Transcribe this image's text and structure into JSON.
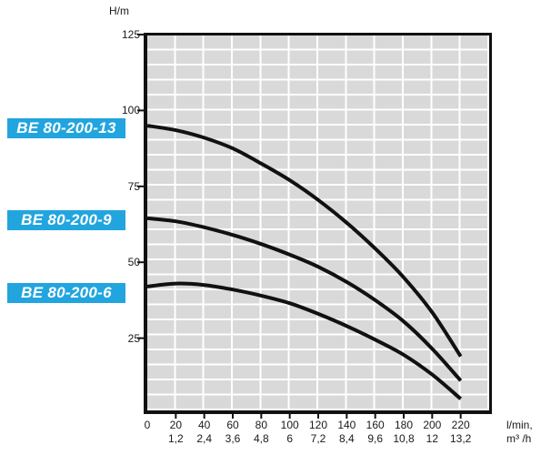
{
  "chart_data": {
    "type": "line",
    "ylabel_unit": "H/m",
    "x_unit_line1": "l/min,",
    "x_unit_line2": "m³ /h",
    "xlim": [
      0,
      240
    ],
    "ylim": [
      0,
      125
    ],
    "grid": {
      "on": true,
      "x_step_lmin": 20,
      "y_step_m": 5
    },
    "legend_position": "left-outside",
    "y_ticks": [
      25,
      50,
      75,
      100,
      125
    ],
    "x_ticks_lmin": [
      0,
      20,
      40,
      60,
      80,
      100,
      120,
      140,
      160,
      180,
      200,
      220
    ],
    "x_ticks_m3h": [
      "",
      "1,2",
      "2,4",
      "3,6",
      "4,8",
      "6",
      "7,2",
      "8,4",
      "9,6",
      "10,8",
      "12",
      "13,2"
    ],
    "series": [
      {
        "name": "BE 80-200-13",
        "points": [
          [
            0,
            95
          ],
          [
            20,
            93.5
          ],
          [
            40,
            91
          ],
          [
            60,
            87.5
          ],
          [
            80,
            82.5
          ],
          [
            100,
            77
          ],
          [
            120,
            70.5
          ],
          [
            140,
            63
          ],
          [
            160,
            54.5
          ],
          [
            180,
            45
          ],
          [
            200,
            33.5
          ],
          [
            220,
            19
          ]
        ]
      },
      {
        "name": "BE 80-200-9",
        "points": [
          [
            0,
            64.5
          ],
          [
            20,
            63.5
          ],
          [
            40,
            61.5
          ],
          [
            60,
            59
          ],
          [
            80,
            56
          ],
          [
            100,
            52.5
          ],
          [
            120,
            48.5
          ],
          [
            140,
            43.5
          ],
          [
            160,
            37.5
          ],
          [
            180,
            30.5
          ],
          [
            200,
            21.5
          ],
          [
            220,
            11
          ]
        ]
      },
      {
        "name": "BE 80-200-6",
        "points": [
          [
            0,
            42
          ],
          [
            20,
            43
          ],
          [
            40,
            42.5
          ],
          [
            60,
            41
          ],
          [
            80,
            39
          ],
          [
            100,
            36.5
          ],
          [
            120,
            33
          ],
          [
            140,
            29
          ],
          [
            160,
            24.5
          ],
          [
            180,
            19.5
          ],
          [
            200,
            13
          ],
          [
            220,
            5
          ]
        ]
      }
    ],
    "colors": {
      "curve": "#111111",
      "grid_cell": "#d9d9d9",
      "grid_gap": "#ffffff",
      "axis": "#111111",
      "label_bg": "#22a5df",
      "label_text": "#ffffff"
    }
  }
}
